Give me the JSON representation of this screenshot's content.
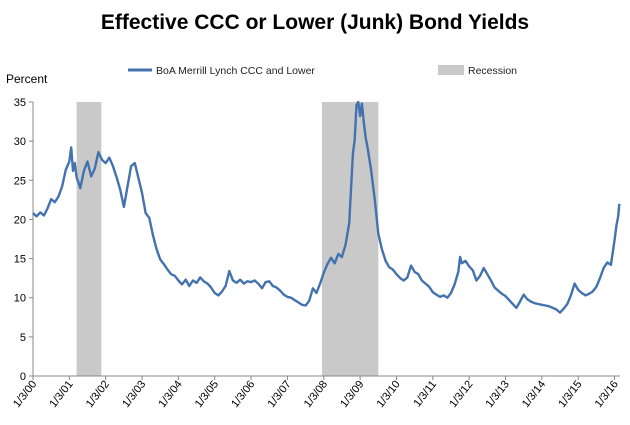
{
  "chart_data": {
    "type": "line",
    "title": "Effective CCC or Lower (Junk) Bond Yields",
    "ylabel": "Percent",
    "xlabel": "",
    "ylim": [
      0,
      35
    ],
    "yticks": [
      0,
      5,
      10,
      15,
      20,
      25,
      30,
      35
    ],
    "xlim": [
      2000.0,
      2016.15
    ],
    "xticks": [
      {
        "label": "1/3/00",
        "value": 2000.0
      },
      {
        "label": "1/3/01",
        "value": 2001.0
      },
      {
        "label": "1/3/02",
        "value": 2002.0
      },
      {
        "label": "1/3/03",
        "value": 2003.0
      },
      {
        "label": "1/3/04",
        "value": 2004.0
      },
      {
        "label": "1/3/05",
        "value": 2005.0
      },
      {
        "label": "1/3/06",
        "value": 2006.0
      },
      {
        "label": "1/3/07",
        "value": 2007.0
      },
      {
        "label": "1/3/08",
        "value": 2008.0
      },
      {
        "label": "1/3/09",
        "value": 2009.0
      },
      {
        "label": "1/3/10",
        "value": 2010.0
      },
      {
        "label": "1/3/11",
        "value": 2011.0
      },
      {
        "label": "1/3/12",
        "value": 2012.0
      },
      {
        "label": "1/3/13",
        "value": 2013.0
      },
      {
        "label": "1/3/14",
        "value": 2014.0
      },
      {
        "label": "1/3/15",
        "value": 2015.0
      },
      {
        "label": "1/3/16",
        "value": 2016.0
      }
    ],
    "grid": false,
    "legend_placement": "top",
    "series": [
      {
        "name": "BoA Merrill Lynch CCC and Lower",
        "color": "#4472ae",
        "points": [
          [
            2000.0,
            20.8
          ],
          [
            2000.1,
            20.4
          ],
          [
            2000.2,
            20.9
          ],
          [
            2000.3,
            20.5
          ],
          [
            2000.4,
            21.4
          ],
          [
            2000.5,
            22.6
          ],
          [
            2000.6,
            22.2
          ],
          [
            2000.7,
            22.9
          ],
          [
            2000.8,
            24.2
          ],
          [
            2000.9,
            26.3
          ],
          [
            2001.0,
            27.4
          ],
          [
            2001.05,
            29.2
          ],
          [
            2001.1,
            26.2
          ],
          [
            2001.15,
            27.2
          ],
          [
            2001.2,
            25.4
          ],
          [
            2001.3,
            24.0
          ],
          [
            2001.4,
            26.2
          ],
          [
            2001.5,
            27.4
          ],
          [
            2001.6,
            25.5
          ],
          [
            2001.7,
            26.5
          ],
          [
            2001.8,
            28.6
          ],
          [
            2001.9,
            27.6
          ],
          [
            2002.0,
            27.2
          ],
          [
            2002.1,
            27.9
          ],
          [
            2002.2,
            26.8
          ],
          [
            2002.3,
            25.4
          ],
          [
            2002.4,
            23.8
          ],
          [
            2002.5,
            21.6
          ],
          [
            2002.6,
            24.2
          ],
          [
            2002.7,
            26.8
          ],
          [
            2002.8,
            27.2
          ],
          [
            2002.9,
            25.3
          ],
          [
            2003.0,
            23.4
          ],
          [
            2003.1,
            20.8
          ],
          [
            2003.2,
            20.2
          ],
          [
            2003.3,
            18.0
          ],
          [
            2003.4,
            16.2
          ],
          [
            2003.5,
            14.9
          ],
          [
            2003.6,
            14.3
          ],
          [
            2003.7,
            13.6
          ],
          [
            2003.8,
            13.0
          ],
          [
            2003.9,
            12.8
          ],
          [
            2004.0,
            12.2
          ],
          [
            2004.1,
            11.7
          ],
          [
            2004.2,
            12.3
          ],
          [
            2004.3,
            11.5
          ],
          [
            2004.4,
            12.2
          ],
          [
            2004.5,
            11.9
          ],
          [
            2004.6,
            12.6
          ],
          [
            2004.7,
            12.1
          ],
          [
            2004.8,
            11.8
          ],
          [
            2004.9,
            11.3
          ],
          [
            2005.0,
            10.6
          ],
          [
            2005.1,
            10.3
          ],
          [
            2005.2,
            10.8
          ],
          [
            2005.3,
            11.5
          ],
          [
            2005.4,
            13.4
          ],
          [
            2005.5,
            12.2
          ],
          [
            2005.6,
            11.9
          ],
          [
            2005.7,
            12.3
          ],
          [
            2005.8,
            11.8
          ],
          [
            2005.9,
            12.1
          ],
          [
            2006.0,
            12.0
          ],
          [
            2006.1,
            12.2
          ],
          [
            2006.2,
            11.8
          ],
          [
            2006.3,
            11.2
          ],
          [
            2006.4,
            12.0
          ],
          [
            2006.5,
            12.1
          ],
          [
            2006.6,
            11.5
          ],
          [
            2006.7,
            11.3
          ],
          [
            2006.8,
            10.9
          ],
          [
            2006.9,
            10.4
          ],
          [
            2007.0,
            10.1
          ],
          [
            2007.1,
            10.0
          ],
          [
            2007.2,
            9.7
          ],
          [
            2007.3,
            9.4
          ],
          [
            2007.4,
            9.1
          ],
          [
            2007.5,
            9.0
          ],
          [
            2007.6,
            9.6
          ],
          [
            2007.7,
            11.2
          ],
          [
            2007.8,
            10.6
          ],
          [
            2007.9,
            11.8
          ],
          [
            2008.0,
            13.2
          ],
          [
            2008.1,
            14.3
          ],
          [
            2008.2,
            15.1
          ],
          [
            2008.3,
            14.4
          ],
          [
            2008.4,
            15.6
          ],
          [
            2008.5,
            15.2
          ],
          [
            2008.6,
            16.8
          ],
          [
            2008.7,
            19.5
          ],
          [
            2008.75,
            23.8
          ],
          [
            2008.8,
            28.4
          ],
          [
            2008.85,
            30.2
          ],
          [
            2008.9,
            34.6
          ],
          [
            2008.95,
            35.4
          ],
          [
            2009.0,
            33.2
          ],
          [
            2009.05,
            34.8
          ],
          [
            2009.1,
            32.4
          ],
          [
            2009.15,
            30.5
          ],
          [
            2009.2,
            29.3
          ],
          [
            2009.3,
            26.4
          ],
          [
            2009.4,
            22.6
          ],
          [
            2009.5,
            18.2
          ],
          [
            2009.6,
            16.2
          ],
          [
            2009.7,
            14.7
          ],
          [
            2009.8,
            13.9
          ],
          [
            2009.9,
            13.6
          ],
          [
            2010.0,
            13.0
          ],
          [
            2010.1,
            12.5
          ],
          [
            2010.2,
            12.2
          ],
          [
            2010.3,
            12.6
          ],
          [
            2010.4,
            14.1
          ],
          [
            2010.5,
            13.3
          ],
          [
            2010.6,
            13.0
          ],
          [
            2010.7,
            12.2
          ],
          [
            2010.8,
            11.8
          ],
          [
            2010.9,
            11.4
          ],
          [
            2011.0,
            10.7
          ],
          [
            2011.1,
            10.4
          ],
          [
            2011.2,
            10.1
          ],
          [
            2011.3,
            10.3
          ],
          [
            2011.4,
            10.0
          ],
          [
            2011.5,
            10.6
          ],
          [
            2011.6,
            11.7
          ],
          [
            2011.7,
            13.3
          ],
          [
            2011.75,
            15.2
          ],
          [
            2011.8,
            14.4
          ],
          [
            2011.9,
            14.7
          ],
          [
            2012.0,
            14.0
          ],
          [
            2012.1,
            13.5
          ],
          [
            2012.2,
            12.2
          ],
          [
            2012.3,
            12.8
          ],
          [
            2012.4,
            13.8
          ],
          [
            2012.5,
            13.0
          ],
          [
            2012.6,
            12.2
          ],
          [
            2012.7,
            11.3
          ],
          [
            2012.8,
            10.9
          ],
          [
            2012.9,
            10.5
          ],
          [
            2013.0,
            10.2
          ],
          [
            2013.1,
            9.7
          ],
          [
            2013.2,
            9.2
          ],
          [
            2013.3,
            8.7
          ],
          [
            2013.4,
            9.5
          ],
          [
            2013.5,
            10.4
          ],
          [
            2013.6,
            9.8
          ],
          [
            2013.7,
            9.5
          ],
          [
            2013.8,
            9.3
          ],
          [
            2013.9,
            9.2
          ],
          [
            2014.0,
            9.1
          ],
          [
            2014.1,
            9.0
          ],
          [
            2014.2,
            8.9
          ],
          [
            2014.3,
            8.7
          ],
          [
            2014.4,
            8.5
          ],
          [
            2014.5,
            8.1
          ],
          [
            2014.6,
            8.6
          ],
          [
            2014.7,
            9.2
          ],
          [
            2014.8,
            10.3
          ],
          [
            2014.9,
            11.8
          ],
          [
            2015.0,
            11.0
          ],
          [
            2015.1,
            10.6
          ],
          [
            2015.2,
            10.3
          ],
          [
            2015.3,
            10.5
          ],
          [
            2015.4,
            10.8
          ],
          [
            2015.5,
            11.4
          ],
          [
            2015.6,
            12.5
          ],
          [
            2015.7,
            13.8
          ],
          [
            2015.8,
            14.5
          ],
          [
            2015.9,
            14.2
          ],
          [
            2016.0,
            17.3
          ],
          [
            2016.05,
            19.2
          ],
          [
            2016.1,
            20.4
          ],
          [
            2016.13,
            22.0
          ]
        ]
      },
      {
        "name": "Recession",
        "color": "#c9c9c9",
        "periods": [
          [
            2001.2,
            2001.88
          ],
          [
            2007.95,
            2009.5
          ]
        ]
      }
    ]
  }
}
